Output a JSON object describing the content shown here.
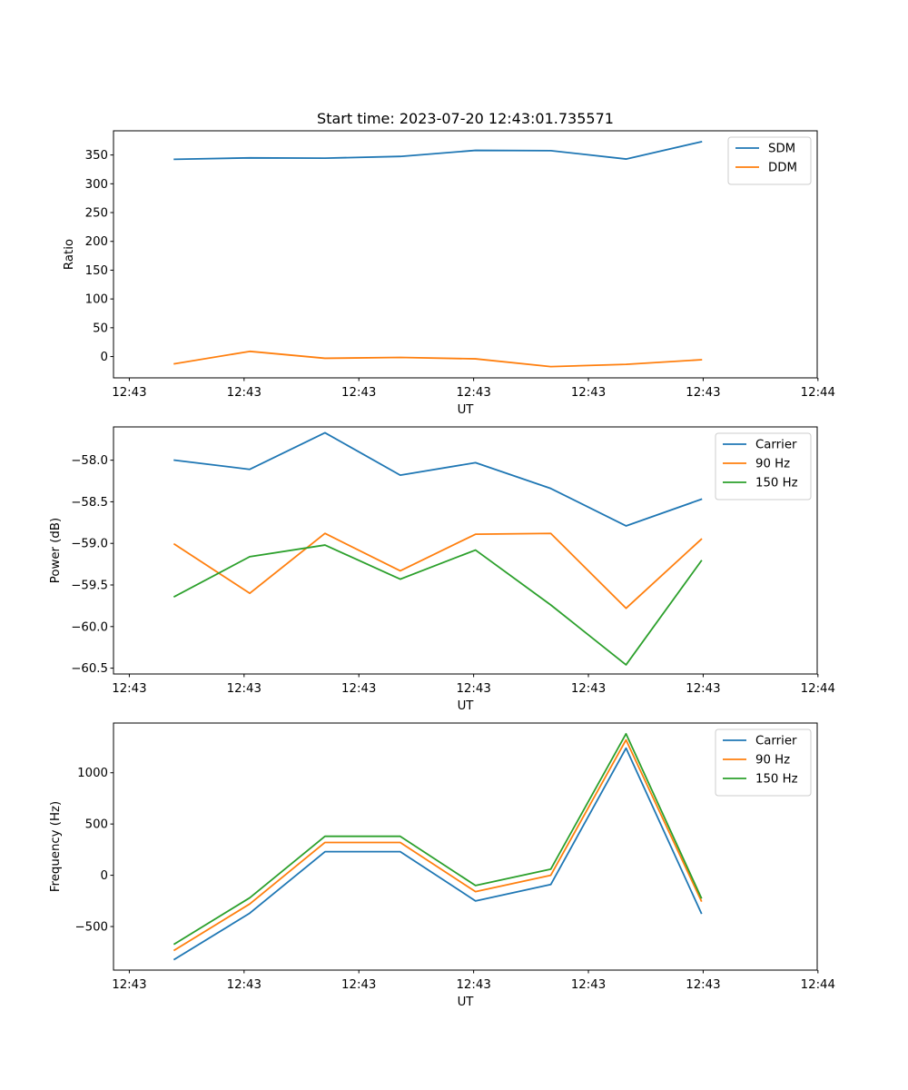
{
  "figure_title": "Start time: 2023-07-20 12:43:01.735571",
  "colors": {
    "blue": "#1f77b4",
    "orange": "#ff7f0e",
    "green": "#2ca02c"
  },
  "chart_data": [
    {
      "type": "line",
      "title": "Start time: 2023-07-20 12:43:01.735571",
      "xlabel": "UT",
      "ylabel": "Ratio",
      "x": [
        1,
        2,
        3,
        4,
        5,
        6,
        7,
        8
      ],
      "xlim": [
        0.19,
        9.54
      ],
      "xticks": [
        0.4,
        1.925,
        3.45,
        4.975,
        6.5,
        8.025,
        9.55
      ],
      "xtick_labels": [
        "12:43",
        "12:43",
        "12:43",
        "12:43",
        "12:43",
        "12:43",
        "12:44"
      ],
      "ylim": [
        -37,
        392
      ],
      "yticks": [
        0,
        50,
        100,
        150,
        200,
        250,
        300,
        350
      ],
      "ytick_labels": [
        "0",
        "50",
        "100",
        "150",
        "200",
        "250",
        "300",
        "350"
      ],
      "legend": "top-right",
      "series": [
        {
          "name": "SDM",
          "color": "#1f77b4",
          "values": [
            342.5,
            345,
            344.5,
            347.5,
            358,
            357.5,
            343,
            373
          ]
        },
        {
          "name": "DDM",
          "color": "#ff7f0e",
          "values": [
            -12.5,
            9,
            -3,
            -1.5,
            -4,
            -17.5,
            -13.5,
            -5.5
          ]
        }
      ]
    },
    {
      "type": "line",
      "xlabel": "UT",
      "ylabel": "Power (dB)",
      "x": [
        1,
        2,
        3,
        4,
        5,
        6,
        7,
        8
      ],
      "xlim": [
        0.19,
        9.54
      ],
      "xticks": [
        0.4,
        1.925,
        3.45,
        4.975,
        6.5,
        8.025,
        9.55
      ],
      "xtick_labels": [
        "12:43",
        "12:43",
        "12:43",
        "12:43",
        "12:43",
        "12:43",
        "12:44"
      ],
      "ylim": [
        -60.57,
        -57.6
      ],
      "yticks": [
        -60.5,
        -60.0,
        -59.5,
        -59.0,
        -58.5,
        -58.0
      ],
      "ytick_labels": [
        "−60.5",
        "−60.0",
        "−59.5",
        "−59.0",
        "−58.5",
        "−58.0"
      ],
      "legend": "top-right",
      "series": [
        {
          "name": "Carrier",
          "color": "#1f77b4",
          "values": [
            -58.0,
            -58.11,
            -57.67,
            -58.18,
            -58.03,
            -58.34,
            -58.79,
            -58.47
          ]
        },
        {
          "name": "90 Hz",
          "color": "#ff7f0e",
          "values": [
            -59.01,
            -59.6,
            -58.88,
            -59.33,
            -58.89,
            -58.88,
            -59.78,
            -58.95
          ]
        },
        {
          "name": "150 Hz",
          "color": "#2ca02c",
          "values": [
            -59.64,
            -59.16,
            -59.02,
            -59.43,
            -59.08,
            -59.74,
            -60.46,
            -59.21
          ]
        }
      ]
    },
    {
      "type": "line",
      "xlabel": "UT",
      "ylabel": "Frequency (Hz)",
      "x": [
        1,
        2,
        3,
        4,
        5,
        6,
        7,
        8
      ],
      "xlim": [
        0.19,
        9.54
      ],
      "xticks": [
        0.4,
        1.925,
        3.45,
        4.975,
        6.5,
        8.025,
        9.55
      ],
      "xtick_labels": [
        "12:43",
        "12:43",
        "12:43",
        "12:43",
        "12:43",
        "12:43",
        "12:44"
      ],
      "ylim": [
        -925,
        1485
      ],
      "yticks": [
        -500,
        0,
        500,
        1000
      ],
      "ytick_labels": [
        "−500",
        "0",
        "500",
        "1000"
      ],
      "legend": "top-right",
      "series": [
        {
          "name": "Carrier",
          "color": "#1f77b4",
          "values": [
            -820,
            -370,
            230,
            230,
            -250,
            -90,
            1240,
            -370
          ]
        },
        {
          "name": "90 Hz",
          "color": "#ff7f0e",
          "values": [
            -730,
            -280,
            320,
            320,
            -160,
            0,
            1320,
            -250
          ]
        },
        {
          "name": "150 Hz",
          "color": "#2ca02c",
          "values": [
            -670,
            -220,
            380,
            380,
            -100,
            60,
            1380,
            -220
          ]
        }
      ]
    }
  ]
}
